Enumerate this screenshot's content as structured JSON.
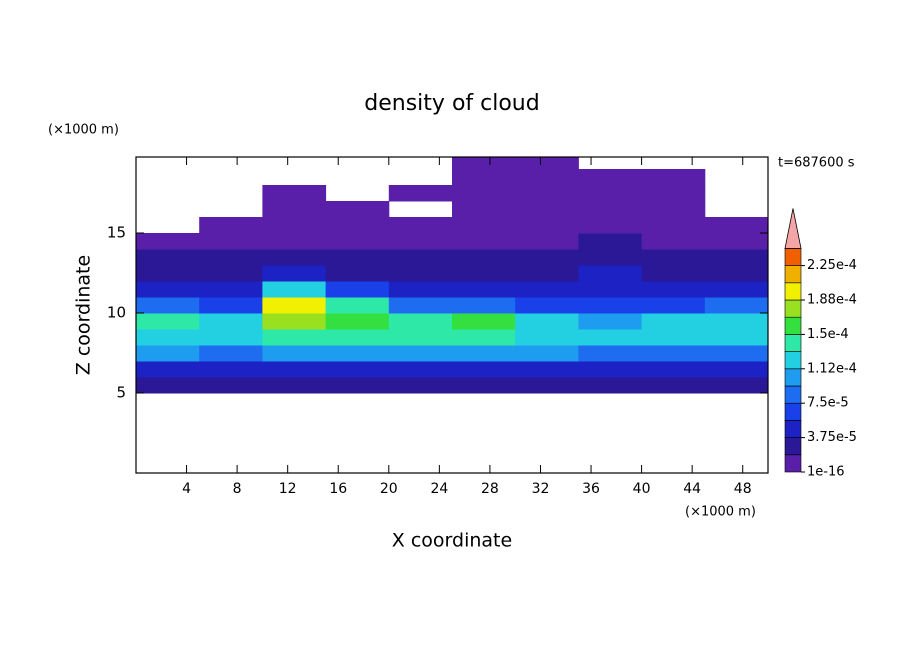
{
  "chart_data": {
    "type": "heatmap",
    "title": "density of cloud",
    "x_label": "X coordinate",
    "y_label": "Z coordinate",
    "x_unit": "(×1000 m)",
    "y_unit": "(×1000 m)",
    "annotation": "t=687600 s",
    "x_bins": [
      0,
      5,
      10,
      15,
      20,
      25,
      30,
      35,
      40,
      45,
      50
    ],
    "y_bins": [
      5,
      6,
      7,
      8,
      9,
      10,
      11,
      12,
      13,
      14,
      15,
      16,
      17,
      18,
      19,
      20
    ],
    "values": [
      [
        2.5e-05,
        2.5e-05,
        2.5e-05,
        2.5e-05,
        2.5e-05,
        2.5e-05,
        2.5e-05,
        2.5e-05,
        2.5e-05,
        2.5e-05
      ],
      [
        5.5e-05,
        5e-05,
        5.5e-05,
        5.5e-05,
        5.5e-05,
        5.5e-05,
        5.5e-05,
        5e-05,
        5e-05,
        5e-05
      ],
      [
        9.5e-05,
        9e-05,
        0.0001,
        9.5e-05,
        9.5e-05,
        0.0001,
        9.5e-05,
        8.5e-05,
        9e-05,
        9e-05
      ],
      [
        0.000125,
        0.00013,
        0.000145,
        0.00014,
        0.000135,
        0.000135,
        0.00013,
        0.000115,
        0.00012,
        0.00012
      ],
      [
        0.000145,
        0.00013,
        0.000175,
        0.00016,
        0.00014,
        0.00015,
        0.00013,
        0.000105,
        0.000115,
        0.00012
      ],
      [
        9e-05,
        7e-05,
        0.00019,
        0.00014,
        8e-05,
        8e-05,
        7e-05,
        6.5e-05,
        7e-05,
        8e-05
      ],
      [
        5e-05,
        4.5e-05,
        0.00012,
        6e-05,
        4.5e-05,
        4.5e-05,
        4.5e-05,
        5e-05,
        4.5e-05,
        4.5e-05
      ],
      [
        3.5e-05,
        3.5e-05,
        4e-05,
        3.5e-05,
        3e-05,
        3e-05,
        3e-05,
        4e-05,
        3e-05,
        3e-05
      ],
      [
        2.5e-05,
        2.5e-05,
        2.5e-05,
        2e-05,
        2e-05,
        2e-05,
        2e-05,
        3e-05,
        2e-05,
        2e-05
      ],
      [
        1.5e-05,
        1.5e-05,
        1.5e-05,
        1.5e-05,
        1e-05,
        1e-05,
        1.5e-05,
        2e-05,
        1.5e-05,
        1.5e-05
      ],
      [
        null,
        1e-05,
        1e-05,
        1e-05,
        1e-05,
        1e-05,
        1e-05,
        1.5e-05,
        1e-05,
        1e-05
      ],
      [
        null,
        null,
        1e-05,
        1e-05,
        null,
        1e-05,
        1e-05,
        1e-05,
        1e-05,
        null
      ],
      [
        null,
        null,
        1e-05,
        null,
        1e-05,
        1e-05,
        1e-05,
        1e-05,
        1e-05,
        null
      ],
      [
        null,
        null,
        null,
        null,
        null,
        1e-05,
        1e-05,
        1e-05,
        1e-05,
        null
      ],
      [
        null,
        null,
        null,
        null,
        null,
        1e-05,
        1e-05,
        null,
        null,
        null
      ]
    ],
    "xlim": [
      0,
      50
    ],
    "ylim": [
      0,
      19.75
    ],
    "xticks": [
      4,
      8,
      12,
      16,
      20,
      24,
      28,
      32,
      36,
      40,
      44,
      48
    ],
    "yticks": [
      5,
      10,
      15
    ],
    "colorbar": {
      "levels": [
        1e-16,
        1.875e-05,
        3.75e-05,
        5.625e-05,
        7.5e-05,
        9.375e-05,
        0.0001125,
        0.00013125,
        0.00015,
        0.00016875,
        0.0001875,
        0.00020625,
        0.000225,
        0.00024375
      ],
      "ticks": [
        1e-16,
        {
          "value": 3.75e-05,
          "label": "3.75e-5"
        },
        {
          "value": 7.5e-05,
          "label": "7.5e-5"
        },
        {
          "value": 0.0001125,
          "label": "1.12e-4"
        },
        {
          "value": 0.00015,
          "label": "1.5e-4"
        },
        {
          "value": 0.0001875,
          "label": "1.88e-4"
        },
        {
          "value": 0.000225,
          "label": "2.25e-4"
        }
      ],
      "colors": [
        "#5a1fa8",
        "#2a1896",
        "#1c22c4",
        "#1a40ea",
        "#1e6cf0",
        "#1e9cf0",
        "#22d0e2",
        "#2ee8a8",
        "#34e040",
        "#98e020",
        "#f0f000",
        "#f0b000",
        "#f06000"
      ],
      "extend_color": "#f4a6a6"
    }
  }
}
